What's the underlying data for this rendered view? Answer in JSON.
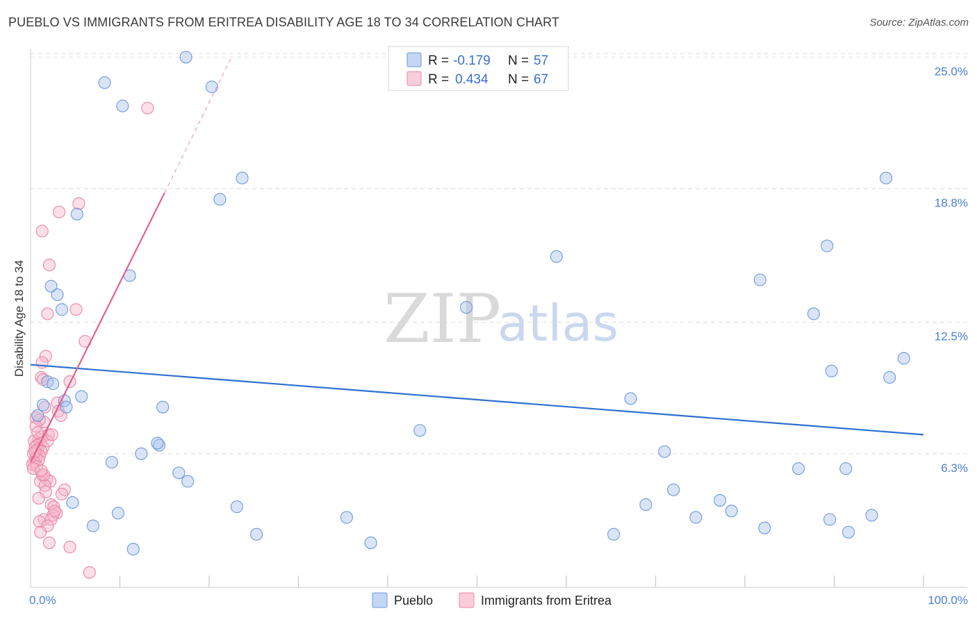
{
  "title": "PUEBLO VS IMMIGRANTS FROM ERITREA DISABILITY AGE 18 TO 34 CORRELATION CHART",
  "source": "Source: ZipAtlas.com",
  "watermark": {
    "zip": "ZIP",
    "atlas": "atlas"
  },
  "colors": {
    "pueblo_fill": "#aac4ee",
    "pueblo_stroke": "#6f9ad9",
    "pueblo_line": "#2f6fcf",
    "eritrea_fill": "#f6b8cb",
    "eritrea_stroke": "#e787a6",
    "eritrea_line": "#e0608a",
    "grid": "#dedede",
    "axis_text": "#4a7fd4"
  },
  "legend": {
    "row1": {
      "r_label": "R =",
      "r_value": "-0.179",
      "n_label": "N =",
      "n_value": "57"
    },
    "row2": {
      "r_label": "R =",
      "r_value": "0.434",
      "n_label": "N =",
      "n_value": "67"
    }
  },
  "chart_data": {
    "type": "scatter",
    "title": "PUEBLO VS IMMIGRANTS FROM ERITREA DISABILITY AGE 18 TO 34 CORRELATION CHART",
    "xlabel": "",
    "ylabel": "Disability Age 18 to 34",
    "xlim": [
      0,
      100
    ],
    "ylim": [
      0,
      25.6
    ],
    "x_tick_labels": [
      "0.0%",
      "100.0%"
    ],
    "y_ticks": [
      6.3,
      12.5,
      18.8,
      25.0
    ],
    "y_tick_labels": [
      "6.3%",
      "12.5%",
      "18.8%",
      "25.0%"
    ],
    "grid": true,
    "legend_position": "top-center",
    "series": [
      {
        "name": "Pueblo",
        "R": -0.179,
        "N": 57,
        "trend": {
          "x": [
            0,
            100
          ],
          "y": [
            10.5,
            7.2
          ]
        },
        "points": [
          [
            17.4,
            25.0
          ],
          [
            8.3,
            23.8
          ],
          [
            10.3,
            22.7
          ],
          [
            20.3,
            23.6
          ],
          [
            23.7,
            19.3
          ],
          [
            21.2,
            18.3
          ],
          [
            5.2,
            17.6
          ],
          [
            11.1,
            14.7
          ],
          [
            2.3,
            14.2
          ],
          [
            3.0,
            13.8
          ],
          [
            3.5,
            13.1
          ],
          [
            1.9,
            9.7
          ],
          [
            5.7,
            9.0
          ],
          [
            3.8,
            8.8
          ],
          [
            4.0,
            8.5
          ],
          [
            1.4,
            8.6
          ],
          [
            0.8,
            8.1
          ],
          [
            14.8,
            8.5
          ],
          [
            14.4,
            6.7
          ],
          [
            14.2,
            6.8
          ],
          [
            12.4,
            6.3
          ],
          [
            9.1,
            5.9
          ],
          [
            16.6,
            5.4
          ],
          [
            17.6,
            5.0
          ],
          [
            4.7,
            4.0
          ],
          [
            7.0,
            2.9
          ],
          [
            9.8,
            3.5
          ],
          [
            11.5,
            1.8
          ],
          [
            23.1,
            3.8
          ],
          [
            25.3,
            2.5
          ],
          [
            35.4,
            3.3
          ],
          [
            38.1,
            2.1
          ],
          [
            43.6,
            7.4
          ],
          [
            58.9,
            15.6
          ],
          [
            48.8,
            13.2
          ],
          [
            67.2,
            8.9
          ],
          [
            65.3,
            2.5
          ],
          [
            68.9,
            3.9
          ],
          [
            71.0,
            6.4
          ],
          [
            72.0,
            4.6
          ],
          [
            74.5,
            3.3
          ],
          [
            77.2,
            4.1
          ],
          [
            78.5,
            3.6
          ],
          [
            81.7,
            14.5
          ],
          [
            82.2,
            2.8
          ],
          [
            86.0,
            5.6
          ],
          [
            87.7,
            12.9
          ],
          [
            89.2,
            16.1
          ],
          [
            89.7,
            10.2
          ],
          [
            89.5,
            3.2
          ],
          [
            91.3,
            5.6
          ],
          [
            91.6,
            2.6
          ],
          [
            94.2,
            3.4
          ],
          [
            95.8,
            19.3
          ],
          [
            96.2,
            9.9
          ],
          [
            97.8,
            10.8
          ],
          [
            2.5,
            9.6
          ]
        ]
      },
      {
        "name": "Immigrants from Eritrea",
        "R": 0.434,
        "N": 67,
        "trend": {
          "x": [
            0,
            15
          ],
          "y": [
            5.9,
            18.6
          ]
        },
        "trend_extension": {
          "x": [
            15,
            22.5
          ],
          "y": [
            18.6,
            25.0
          ]
        },
        "points": [
          [
            13.1,
            22.6
          ],
          [
            5.4,
            18.1
          ],
          [
            3.2,
            17.7
          ],
          [
            1.3,
            16.8
          ],
          [
            2.1,
            15.2
          ],
          [
            5.1,
            13.1
          ],
          [
            1.9,
            12.9
          ],
          [
            6.1,
            11.6
          ],
          [
            1.7,
            10.9
          ],
          [
            1.3,
            10.6
          ],
          [
            1.2,
            9.9
          ],
          [
            1.4,
            9.8
          ],
          [
            4.4,
            9.7
          ],
          [
            3.0,
            8.7
          ],
          [
            3.1,
            8.3
          ],
          [
            1.6,
            8.5
          ],
          [
            0.6,
            8.0
          ],
          [
            1.5,
            7.8
          ],
          [
            1.0,
            7.9
          ],
          [
            0.6,
            7.6
          ],
          [
            2.0,
            7.2
          ],
          [
            1.3,
            7.1
          ],
          [
            0.9,
            7.0
          ],
          [
            0.4,
            6.9
          ],
          [
            1.1,
            6.8
          ],
          [
            0.7,
            6.7
          ],
          [
            1.4,
            6.6
          ],
          [
            0.5,
            6.6
          ],
          [
            0.8,
            6.5
          ],
          [
            1.2,
            6.4
          ],
          [
            0.3,
            6.3
          ],
          [
            1.0,
            6.2
          ],
          [
            0.6,
            6.1
          ],
          [
            0.9,
            6.0
          ],
          [
            0.4,
            5.9
          ],
          [
            0.2,
            5.8
          ],
          [
            0.7,
            5.7
          ],
          [
            0.3,
            5.6
          ],
          [
            1.3,
            5.3
          ],
          [
            1.8,
            5.1
          ],
          [
            1.1,
            5.0
          ],
          [
            2.2,
            5.0
          ],
          [
            1.6,
            4.8
          ],
          [
            3.8,
            4.6
          ],
          [
            1.7,
            4.5
          ],
          [
            3.5,
            4.4
          ],
          [
            2.3,
            3.9
          ],
          [
            2.6,
            3.8
          ],
          [
            2.9,
            3.5
          ],
          [
            2.5,
            3.4
          ],
          [
            1.5,
            3.2
          ],
          [
            2.3,
            3.2
          ],
          [
            1.0,
            3.1
          ],
          [
            1.9,
            2.9
          ],
          [
            1.1,
            2.6
          ],
          [
            2.1,
            2.1
          ],
          [
            4.4,
            1.9
          ],
          [
            6.6,
            0.7
          ],
          [
            1.5,
            5.3
          ],
          [
            0.8,
            7.3
          ],
          [
            1.9,
            6.9
          ],
          [
            2.4,
            7.2
          ],
          [
            0.5,
            6.4
          ],
          [
            1.2,
            5.5
          ],
          [
            2.7,
            3.6
          ],
          [
            0.9,
            4.2
          ],
          [
            3.4,
            8.1
          ]
        ]
      }
    ]
  }
}
